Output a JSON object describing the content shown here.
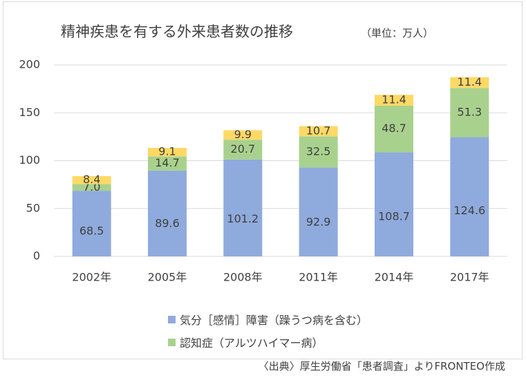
{
  "chart_data": {
    "type": "bar",
    "stacked": true,
    "title": "精神疾患を有する外来患者数の推移",
    "unit_note": "（単位：万人）",
    "categories": [
      "2002年",
      "2005年",
      "2008年",
      "2011年",
      "2014年",
      "2017年"
    ],
    "series": [
      {
        "name": "気分［感情］障害（躁うつ病を含む）",
        "color": "#8faadc",
        "values": [
          68.5,
          89.6,
          101.2,
          92.9,
          108.7,
          124.6
        ],
        "labels": [
          "68.5",
          "89.6",
          "101.2",
          "92.9",
          "108.7",
          "124.6"
        ]
      },
      {
        "name": "認知症（アルツハイマー病）",
        "color": "#a9d18e",
        "values": [
          7.0,
          14.7,
          20.7,
          32.5,
          48.7,
          51.3
        ],
        "labels": [
          "7.0",
          "14.7",
          "20.7",
          "32.5",
          "48.7",
          "51.3"
        ]
      },
      {
        "name": "",
        "color": "#ffd966",
        "values": [
          8.4,
          9.1,
          9.9,
          10.7,
          11.4,
          11.4
        ],
        "labels": [
          "8.4",
          "9.1",
          "9.9",
          "10.7",
          "11.4",
          "11.4"
        ]
      }
    ],
    "yticks": [
      "0",
      "50",
      "100",
      "150",
      "200"
    ],
    "ylim": [
      0,
      200
    ],
    "grid": true,
    "legend": "bottom"
  },
  "source": "〈出典〉厚生労働省「患者調査」よりFRONTEO作成"
}
